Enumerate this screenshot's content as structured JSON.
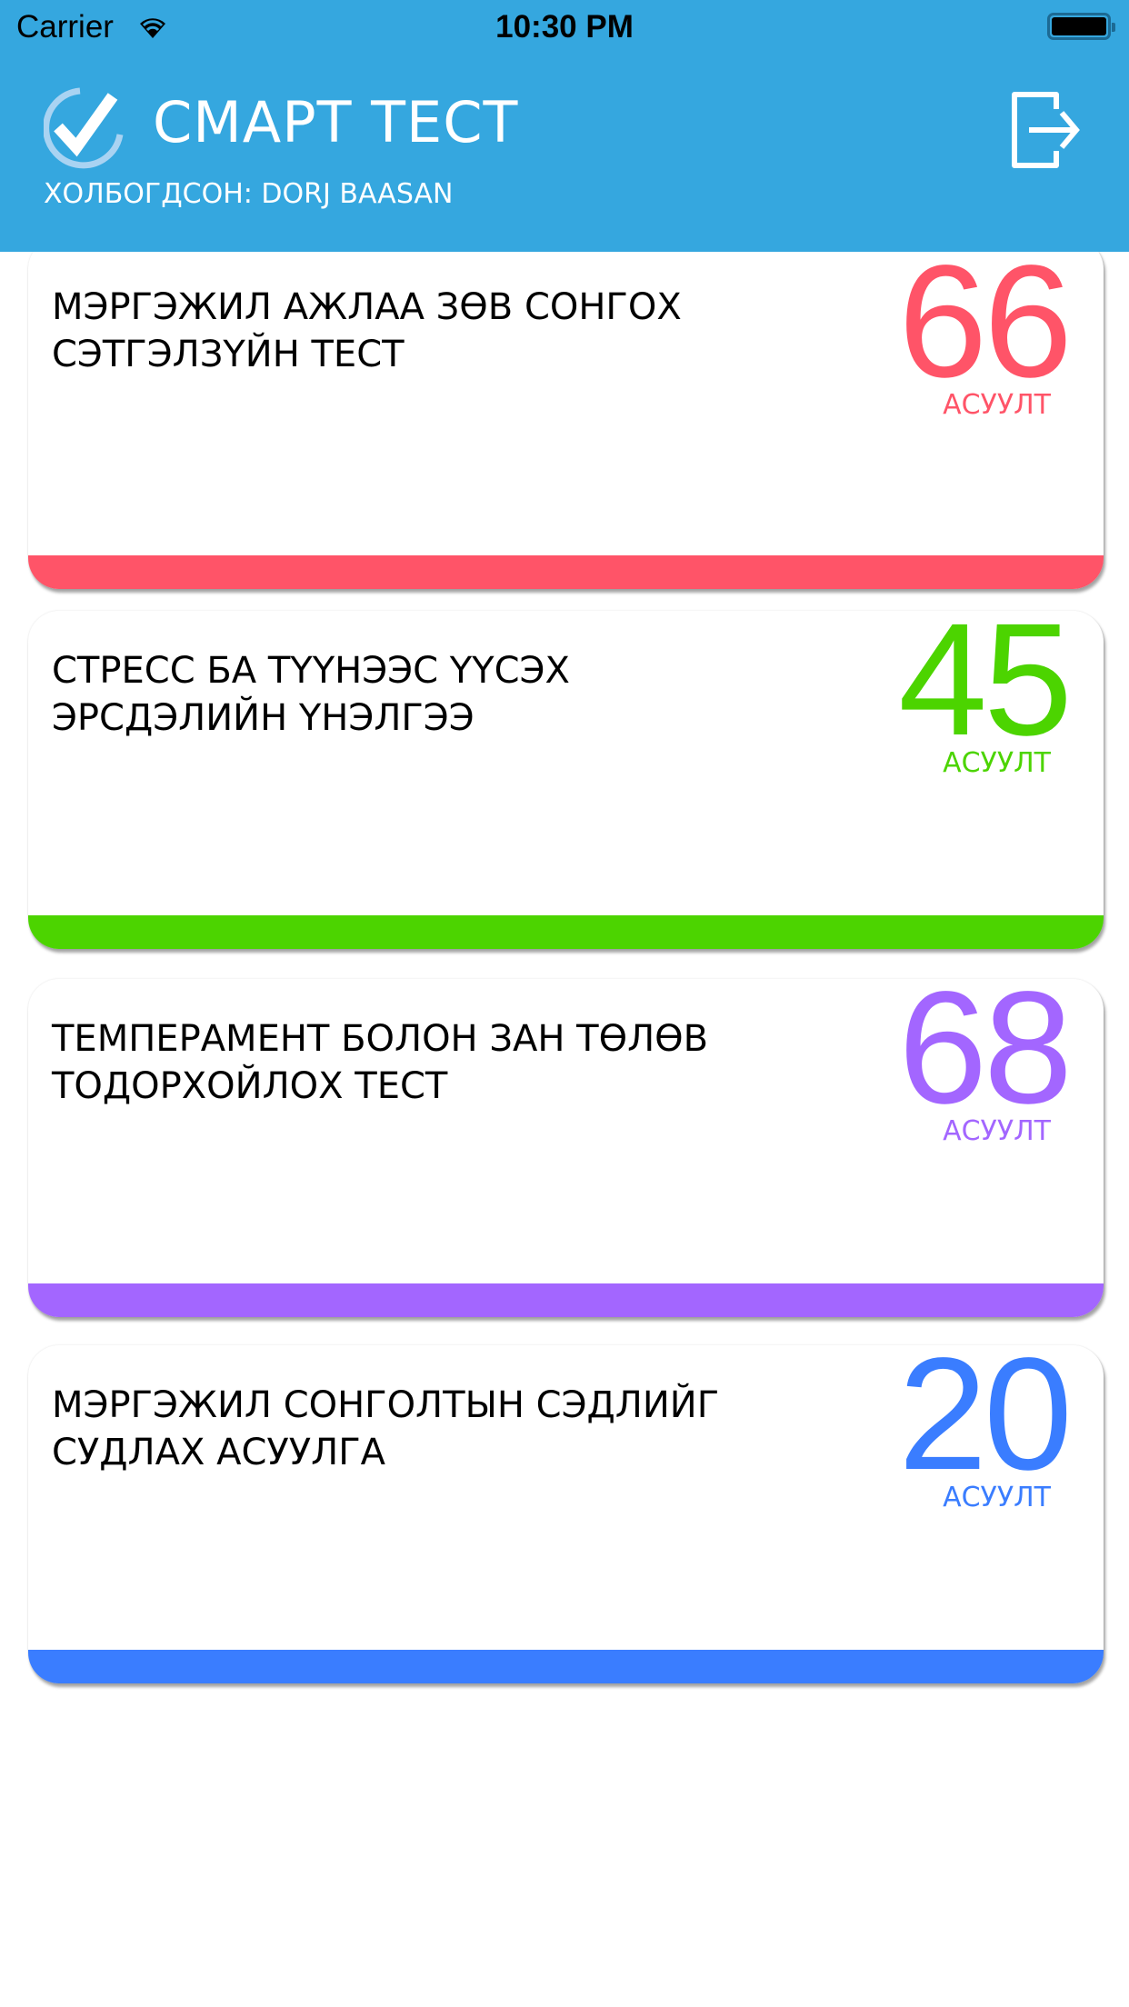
{
  "status_bar": {
    "carrier": "Carrier",
    "time": "10:30 PM",
    "wifi_icon": "wifi-icon",
    "battery_icon": "battery-icon"
  },
  "header": {
    "title": "СМАРТ ТЕСТ",
    "subtitle": "ХОЛБОГДСОН: DORJ BAASAN",
    "logo_icon": "check-circle-icon",
    "logout_icon": "logout-icon",
    "color": "#35A7DF"
  },
  "tests": [
    {
      "title": "МЭРГЭЖИЛ АЖЛАА ЗӨВ СОНГОХ СЭТГЭЛЗҮЙН ТЕСТ",
      "count": "66",
      "unit": "АСУУЛТ",
      "color": "#FF5468"
    },
    {
      "title": "СТРЕСС БА ТҮҮНЭЭС ҮҮСЭХ ЭРСДЭЛИЙН ҮНЭЛГЭЭ",
      "count": "45",
      "unit": "АСУУЛТ",
      "color": "#4CD400"
    },
    {
      "title": "ТЕМПЕРАМЕНТ БОЛОН ЗАН ТӨЛӨВ ТОДОРХОЙЛОХ ТЕСТ",
      "count": "68",
      "unit": "АСУУЛТ",
      "color": "#A366FF"
    },
    {
      "title": "МЭРГЭЖИЛ СОНГОЛТЫН СЭДЛИЙГ СУДЛАХ АСУУЛГА",
      "count": "20",
      "unit": "АСУУЛТ",
      "color": "#3A7DFF"
    }
  ]
}
